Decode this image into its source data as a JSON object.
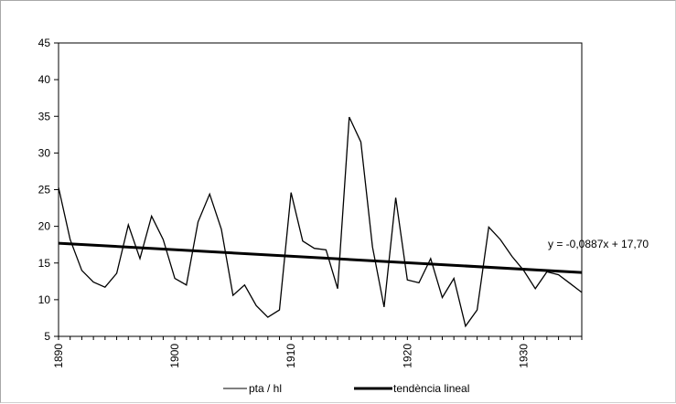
{
  "chart_data": {
    "type": "line",
    "title": "",
    "xlabel": "",
    "ylabel": "",
    "xlim": [
      1890,
      1935
    ],
    "ylim": [
      5,
      45
    ],
    "y_ticks": [
      5,
      10,
      15,
      20,
      25,
      30,
      35,
      40,
      45
    ],
    "x_ticks": [
      1890,
      1900,
      1910,
      1920,
      1930
    ],
    "grid": false,
    "legend_position": "bottom",
    "series": [
      {
        "name": "pta / hl",
        "color": "#000000",
        "x": [
          1890,
          1891,
          1892,
          1893,
          1894,
          1895,
          1896,
          1897,
          1898,
          1899,
          1900,
          1901,
          1902,
          1903,
          1904,
          1905,
          1906,
          1907,
          1908,
          1909,
          1910,
          1911,
          1912,
          1913,
          1914,
          1915,
          1916,
          1917,
          1918,
          1919,
          1920,
          1921,
          1922,
          1923,
          1924,
          1925,
          1926,
          1927,
          1928,
          1929,
          1930,
          1931,
          1932,
          1933,
          1934,
          1935
        ],
        "values": [
          25.3,
          18.2,
          14.0,
          12.4,
          11.7,
          13.6,
          20.2,
          15.6,
          21.4,
          18.2,
          12.9,
          12.0,
          20.6,
          24.4,
          19.6,
          10.6,
          12.0,
          9.2,
          7.6,
          8.6,
          24.6,
          18.0,
          17.0,
          16.8,
          11.5,
          34.9,
          31.5,
          17.2,
          9.0,
          23.9,
          12.7,
          12.3,
          15.6,
          10.3,
          12.9,
          6.4,
          8.6,
          19.9,
          18.2,
          15.9,
          14.0,
          11.5,
          13.8,
          13.4,
          12.2,
          11.0
        ]
      },
      {
        "name": "tendència lineal",
        "color": "#000000",
        "x": [
          1890,
          1935
        ],
        "values": [
          17.7,
          13.71
        ],
        "trend_label": "y = -0,0887x + 17,70"
      }
    ]
  }
}
